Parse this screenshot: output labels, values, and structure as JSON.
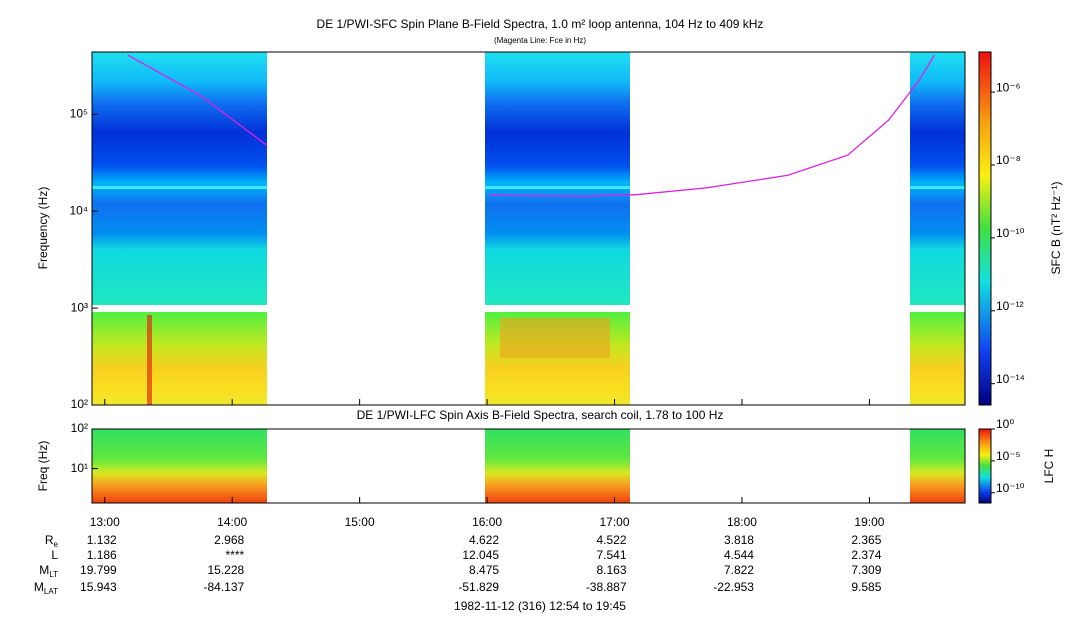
{
  "title": "DE 1/PWI-SFC  Spin Plane B-Field Spectra, 1.0 m² loop antenna, 104 Hz to 409 kHz",
  "subtitle": "(Magenta Line: Fce in Hz)",
  "chart_data": [
    {
      "type": "spectrogram",
      "y_label": "Frequency (Hz)",
      "log": true,
      "xlim": [
        12.9,
        19.75
      ],
      "xticks": [
        {
          "value": 13,
          "label": "13:00"
        },
        {
          "value": 14,
          "label": "14:00"
        },
        {
          "value": 15,
          "label": "15:00"
        },
        {
          "value": 16,
          "label": "16:00"
        },
        {
          "value": 17,
          "label": "17:00"
        },
        {
          "value": 18,
          "label": "18:00"
        },
        {
          "value": 19,
          "label": "19:00"
        }
      ],
      "ylim": [
        100,
        440000
      ],
      "yticks": [
        {
          "value": 100,
          "label": "10²"
        },
        {
          "value": 1000,
          "label": "10³"
        },
        {
          "value": 10000,
          "label": "10⁴"
        },
        {
          "value": 100000,
          "label": "10⁵"
        }
      ],
      "series": [
        {
          "name": "Fce",
          "color": "#e020e0",
          "x": [
            13.18,
            13.75,
            14.27,
            14.28,
            16.02,
            16.77,
            17.17,
            17.72,
            18.36,
            18.83,
            19.15,
            19.39,
            19.51
          ],
          "values": [
            409000,
            157000,
            48000,
            null,
            14600,
            14300,
            14800,
            17400,
            23500,
            38000,
            87000,
            224000,
            409000
          ]
        }
      ],
      "colorbar": {
        "label": "SFC B (nT² Hz⁻¹)",
        "log": true,
        "lim": [
          2.6e-15,
          1.26e-05
        ],
        "ticks": [
          {
            "value": 1e-06,
            "label": "10⁻⁶"
          },
          {
            "value": 1e-08,
            "label": "10⁻⁸"
          },
          {
            "value": 1e-10,
            "label": "10⁻¹⁰"
          },
          {
            "value": 1e-12,
            "label": "10⁻¹²"
          },
          {
            "value": 1e-14,
            "label": "10⁻¹⁴"
          }
        ]
      }
    },
    {
      "type": "spectrogram",
      "title": "DE 1/PWI-LFC  Spin Axis B-Field Spectra, search coil, 1.78 to 100 Hz",
      "y_label": "Freq (Hz)",
      "log": true,
      "xlim": [
        12.9,
        19.75
      ],
      "ylim": [
        1.35,
        100
      ],
      "yticks": [
        {
          "value": 10,
          "label": "10¹"
        },
        {
          "value": 100,
          "label": "10²"
        }
      ],
      "colorbar": {
        "label": "LFC H",
        "log": true,
        "lim": [
          2.5e-12,
          1
        ],
        "ticks": [
          {
            "value": 1,
            "label": "10⁰"
          },
          {
            "value": 1e-05,
            "label": "10⁻⁵"
          },
          {
            "value": 1e-10,
            "label": "10⁻¹⁰"
          }
        ]
      }
    }
  ],
  "ephemeris": {
    "rows": [
      {
        "label": "R",
        "sub": "e",
        "values": [
          1.132,
          2.968,
          null,
          4.622,
          4.522,
          3.818,
          2.365
        ]
      },
      {
        "label": "L",
        "values": [
          1.186,
          "****",
          null,
          12.045,
          7.541,
          4.544,
          2.374
        ]
      },
      {
        "label": "M",
        "sub": "LT",
        "values": [
          19.799,
          15.228,
          null,
          8.475,
          8.163,
          7.822,
          7.309
        ]
      },
      {
        "label": "M",
        "sub": "LAT",
        "values": [
          15.943,
          -84.137,
          null,
          -51.829,
          -38.887,
          -22.953,
          9.585
        ]
      }
    ]
  },
  "footer": "1982-11-12 (316) 12:54 to 19:45"
}
